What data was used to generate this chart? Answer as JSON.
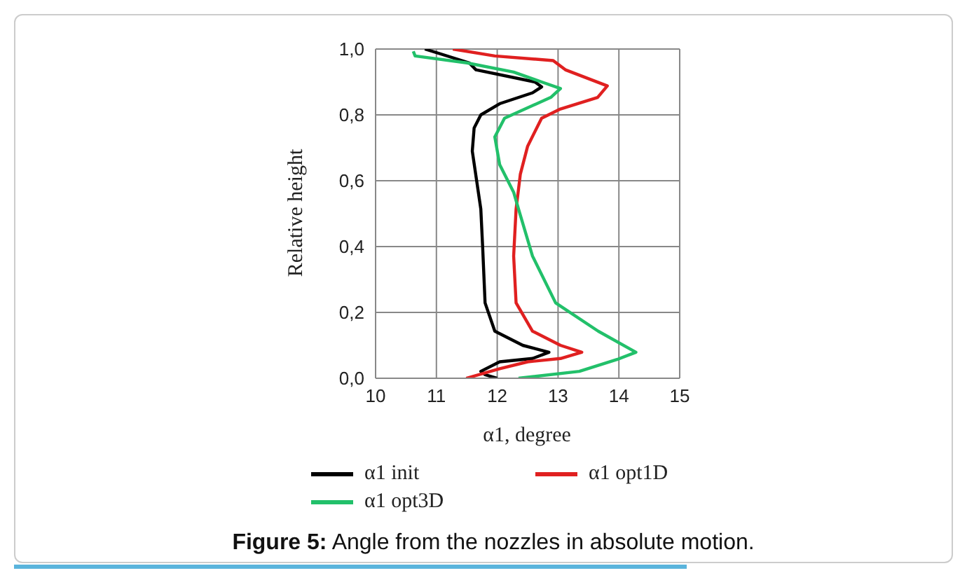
{
  "chart_data": {
    "type": "line",
    "xlabel": "α1, degree",
    "ylabel": "Relative height",
    "annotations": [
      "Figure 5: Angle from the nozzles in absolute motion."
    ],
    "xlim": [
      10,
      15
    ],
    "xticks": [
      10,
      11,
      12,
      13,
      14,
      15
    ],
    "ylim": [
      0,
      1
    ],
    "yticks": [
      {
        "value": 0,
        "label": "0,0"
      },
      {
        "value": 0.2,
        "label": "0,2"
      },
      {
        "value": 0.4,
        "label": "0,4"
      },
      {
        "value": 0.6,
        "label": "0,6"
      },
      {
        "value": 0.8,
        "label": "0,8"
      },
      {
        "value": 1,
        "label": "1,0"
      }
    ],
    "grid": true,
    "legend": "bottom",
    "marker": "none",
    "line_style": "solid",
    "series": [
      {
        "name": "α1 init",
        "color": "#000000",
        "x": [
          10.81,
          11.54,
          11.65,
          12.62,
          12.73,
          12.58,
          12.04,
          11.73,
          11.62,
          11.59,
          11.73,
          11.76,
          11.8,
          11.96,
          12.42,
          12.85,
          12.58,
          12.04,
          11.73,
          11.8,
          12.0
        ],
        "values": [
          1.0,
          0.958,
          0.937,
          0.9,
          0.885,
          0.867,
          0.834,
          0.8,
          0.76,
          0.69,
          0.514,
          0.4,
          0.229,
          0.143,
          0.1,
          0.079,
          0.06,
          0.05,
          0.021,
          0.011,
          0.0
        ]
      },
      {
        "name": "α1 opt1D",
        "color": "#e02020",
        "x": [
          11.27,
          11.96,
          12.92,
          13.12,
          13.81,
          13.65,
          13.04,
          12.73,
          12.5,
          12.38,
          12.31,
          12.27,
          12.31,
          12.58,
          13.04,
          13.39,
          13.04,
          12.5,
          12.04,
          11.49
        ],
        "values": [
          1.0,
          0.979,
          0.965,
          0.937,
          0.888,
          0.853,
          0.818,
          0.79,
          0.705,
          0.62,
          0.514,
          0.371,
          0.229,
          0.143,
          0.1,
          0.079,
          0.06,
          0.05,
          0.029,
          0.0
        ]
      },
      {
        "name": "α1 opt3D",
        "color": "#22c06a",
        "x": [
          10.62,
          10.65,
          11.5,
          12.27,
          12.73,
          13.04,
          12.88,
          12.12,
          11.96,
          12.04,
          12.27,
          12.35,
          12.58,
          12.96,
          13.66,
          14.28,
          13.97,
          13.35,
          12.35
        ],
        "values": [
          0.993,
          0.979,
          0.958,
          0.93,
          0.9,
          0.88,
          0.853,
          0.79,
          0.733,
          0.649,
          0.565,
          0.514,
          0.371,
          0.229,
          0.143,
          0.079,
          0.057,
          0.021,
          0.0
        ]
      }
    ]
  }
}
